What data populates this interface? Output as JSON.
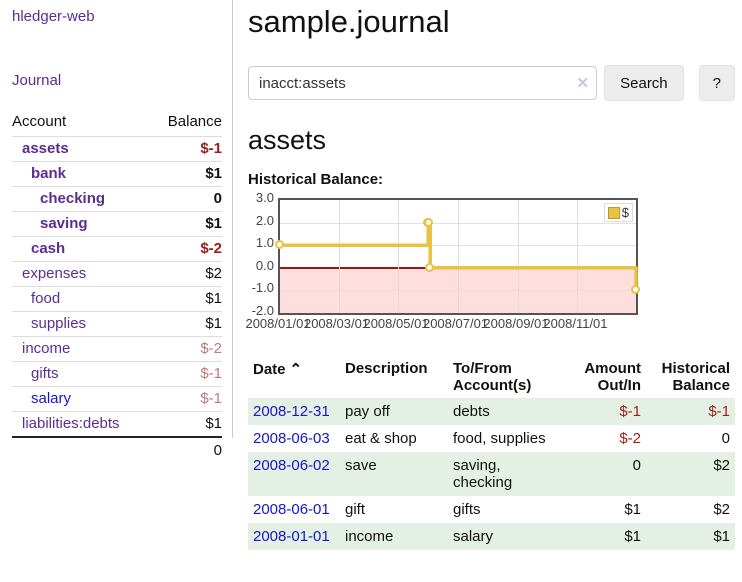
{
  "colors": {
    "purple_link": "#5c2d91",
    "blue_link": "#1515cc",
    "negative_strong": "#9d1d1d",
    "negative_muted": "#c07878",
    "chart_line": "#e8c240",
    "chart_negative_fill": "#ffdede",
    "chart_zero_line": "#9a1414",
    "table_row_green": "#e3f0e3"
  },
  "sidebar": {
    "brand": "hledger-web",
    "journal_link": "Journal",
    "accounts": {
      "header_account": "Account",
      "header_balance": "Balance",
      "rows": [
        {
          "name": "assets",
          "balance": "$-1",
          "depth": 1,
          "bold": true,
          "balance_style": "strong-negative"
        },
        {
          "name": "bank",
          "balance": "$1",
          "depth": 2,
          "bold": true,
          "balance_style": "plain"
        },
        {
          "name": "checking",
          "balance": "0",
          "depth": 3,
          "bold": true,
          "balance_style": "plain"
        },
        {
          "name": "saving",
          "balance": "$1",
          "depth": 3,
          "bold": true,
          "balance_style": "plain"
        },
        {
          "name": "cash",
          "balance": "$-2",
          "depth": 2,
          "bold": true,
          "balance_style": "strong-negative"
        },
        {
          "name": "expenses",
          "balance": "$2",
          "depth": 1,
          "bold": false,
          "balance_style": "plain"
        },
        {
          "name": "food",
          "balance": "$1",
          "depth": 2,
          "bold": false,
          "balance_style": "plain"
        },
        {
          "name": "supplies",
          "balance": "$1",
          "depth": 2,
          "bold": false,
          "balance_style": "plain"
        },
        {
          "name": "income",
          "balance": "$-2",
          "depth": 1,
          "bold": false,
          "balance_style": "muted-negative"
        },
        {
          "name": "gifts",
          "balance": "$-1",
          "depth": 2,
          "bold": false,
          "balance_style": "muted-negative"
        },
        {
          "name": "salary",
          "balance": "$-1",
          "depth": 2,
          "bold": false,
          "balance_style": "muted-negative",
          "link_color": "blue"
        },
        {
          "name": "liabilities:debts",
          "balance": "$1",
          "depth": 1,
          "bold": false,
          "balance_style": "plain"
        }
      ],
      "total": "0"
    }
  },
  "main": {
    "title": "sample.journal",
    "search": {
      "value": "inacct:assets",
      "clear_icon": "✕",
      "search_button": "Search",
      "help_button": "?"
    },
    "account_heading": "assets",
    "chart_title": "Historical Balance:"
  },
  "chart_data": {
    "type": "line",
    "title": "Historical Balance of assets",
    "step": true,
    "x_range": [
      "2008-01-01",
      "2008-12-31"
    ],
    "ylim": [
      -2,
      3
    ],
    "y_ticks": [
      "3.0",
      "2.0",
      "1.0",
      "0.0",
      "-1.0",
      "-2.0"
    ],
    "x_ticks": [
      {
        "date": "2008-01-01",
        "label": "2008/01/01"
      },
      {
        "date": "2008-03-01",
        "label": "2008/03/01"
      },
      {
        "date": "2008-05-01",
        "label": "2008/05/01"
      },
      {
        "date": "2008-07-01",
        "label": "2008/07/01"
      },
      {
        "date": "2008-09-01",
        "label": "2008/09/01"
      },
      {
        "date": "2008-11-01",
        "label": "2008/11/01"
      }
    ],
    "series": [
      {
        "name": "$",
        "color": "#e8c240",
        "points": [
          [
            "2008-01-01",
            1
          ],
          [
            "2008-06-01",
            2
          ],
          [
            "2008-06-02",
            2
          ],
          [
            "2008-06-03",
            0
          ],
          [
            "2008-12-31",
            -1
          ]
        ]
      }
    ],
    "legend_position": "top-right",
    "grid": true,
    "negative_region_shaded": true
  },
  "register": {
    "headers": {
      "date": "Date",
      "sort_indicator": "⌃",
      "description": "Description",
      "tofrom": "To/From Account(s)",
      "amount": "Amount Out/In",
      "balance": "Historical Balance"
    },
    "rows": [
      {
        "date": "2008-12-31",
        "description": "pay off",
        "tofrom": "debts",
        "amount": "$-1",
        "amount_negative": true,
        "balance": "$-1",
        "balance_negative": true
      },
      {
        "date": "2008-06-03",
        "description": "eat & shop",
        "tofrom": "food, supplies",
        "amount": "$-2",
        "amount_negative": true,
        "balance": "0",
        "balance_negative": false
      },
      {
        "date": "2008-06-02",
        "description": "save",
        "tofrom": "saving, checking",
        "amount": "0",
        "amount_negative": false,
        "balance": "$2",
        "balance_negative": false
      },
      {
        "date": "2008-06-01",
        "description": "gift",
        "tofrom": "gifts",
        "amount": "$1",
        "amount_negative": false,
        "balance": "$2",
        "balance_negative": false
      },
      {
        "date": "2008-01-01",
        "description": "income",
        "tofrom": "salary",
        "amount": "$1",
        "amount_negative": false,
        "balance": "$1",
        "balance_negative": false
      }
    ]
  }
}
